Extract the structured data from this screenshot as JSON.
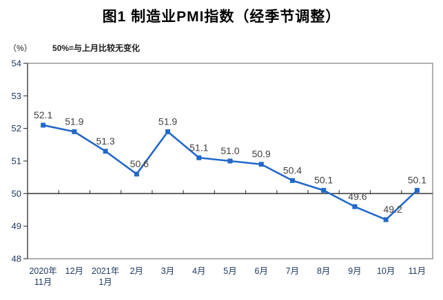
{
  "header": {
    "title": "图1 制造业PMI指数（经季节调整）",
    "unit_label": "（%）",
    "note": "50%=与上月比较无变化"
  },
  "chart_data": {
    "type": "line",
    "title": "图1 制造业PMI指数（经季节调整）",
    "categories": [
      [
        "2020年",
        "11月"
      ],
      [
        "12月"
      ],
      [
        "2021年",
        "1月"
      ],
      [
        "2月"
      ],
      [
        "3月"
      ],
      [
        "4月"
      ],
      [
        "5月"
      ],
      [
        "6月"
      ],
      [
        "7月"
      ],
      [
        "8月"
      ],
      [
        "9月"
      ],
      [
        "10月"
      ],
      [
        "11月"
      ]
    ],
    "values": [
      52.1,
      51.9,
      51.3,
      50.6,
      51.9,
      51.1,
      51.0,
      50.9,
      50.4,
      50.1,
      49.6,
      49.2,
      50.1
    ],
    "point_labels": [
      "52.1",
      "51.9",
      "51.3",
      "50.6",
      "51.9",
      "51.1",
      "51.0",
      "50.9",
      "50.4",
      "50.1",
      "49.6",
      "49.2",
      "50.1"
    ],
    "label_dx": [
      0,
      0,
      0,
      4,
      0,
      0,
      0,
      0,
      0,
      0,
      4,
      10,
      0
    ],
    "ylim": [
      48,
      54
    ],
    "yticks": [
      48,
      49,
      50,
      51,
      52,
      53,
      54
    ],
    "reference_line": 50,
    "grid": false,
    "legend": "none",
    "colors": {
      "line": "#2268C8",
      "marker": "#2268C8",
      "data_label": "#3F3F3F",
      "axis_label": "#1F3864",
      "reference_line": "#404040",
      "border": "#848484",
      "title": "#000000"
    }
  }
}
